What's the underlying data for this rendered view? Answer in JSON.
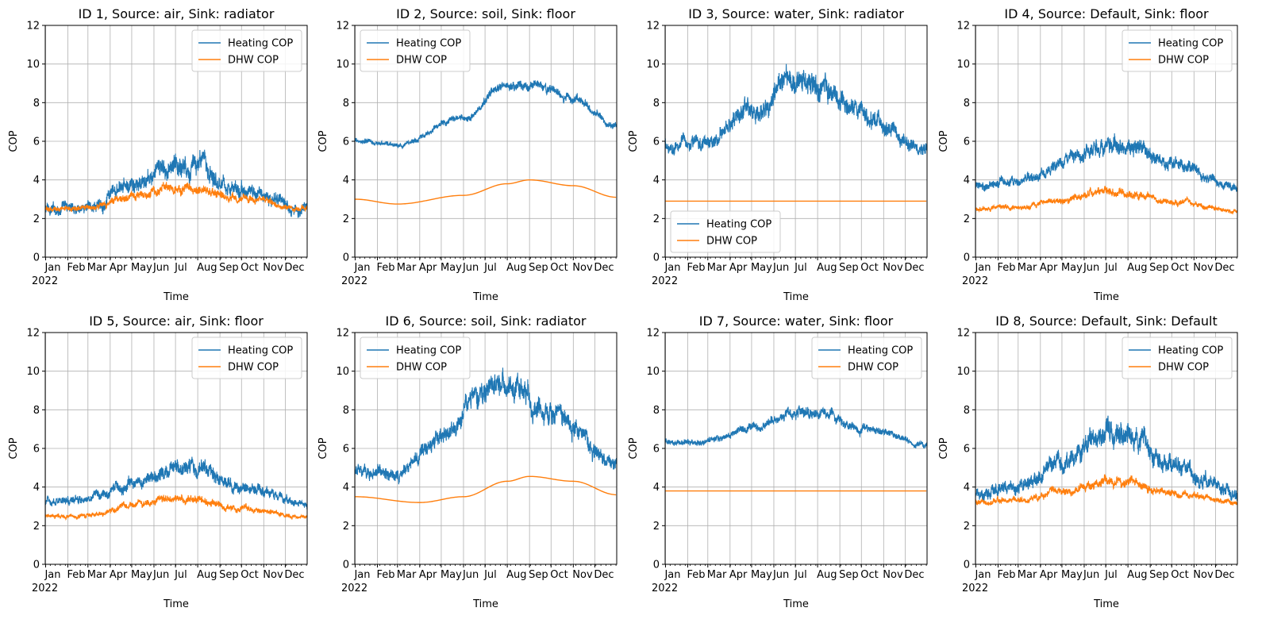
{
  "figure": {
    "colors": {
      "heating": "#1f77b4",
      "dhw": "#ff7f0e",
      "grid": "#b0b0b0",
      "axis": "#000000"
    },
    "series_style": {
      "heating": "noisy seasonal",
      "dhw": "smooth or flat"
    }
  },
  "chart_data": [
    {
      "type": "line",
      "title": "ID 1, Source: air, Sink: radiator",
      "xlabel": "Time",
      "ylabel": "COP",
      "ylim": [
        0,
        12
      ],
      "yticks": [
        0,
        2,
        4,
        6,
        8,
        10,
        12
      ],
      "xticklabels": [
        "Jan",
        "Feb",
        "Mar",
        "Apr",
        "May",
        "Jun",
        "Jul",
        "Aug",
        "Sep",
        "Oct",
        "Nov",
        "Dec"
      ],
      "year_label": "2022",
      "grid": true,
      "legend_position": "upper right",
      "series": [
        {
          "name": "Heating COP",
          "x": [
            "Jan",
            "Mar",
            "May",
            "Jul",
            "Aug",
            "Oct",
            "Dec"
          ],
          "y": [
            2.5,
            2.6,
            3.6,
            4.8,
            4.8,
            3.4,
            2.5
          ],
          "noise": 0.75
        },
        {
          "name": "DHW COP",
          "x": [
            "Jan",
            "Mar",
            "May",
            "Jul",
            "Aug",
            "Oct",
            "Dec"
          ],
          "y": [
            2.5,
            2.6,
            3.1,
            3.5,
            3.5,
            3.0,
            2.5
          ],
          "noise": 0.35
        }
      ]
    },
    {
      "type": "line",
      "title": "ID 2, Source: soil, Sink: floor",
      "xlabel": "Time",
      "ylabel": "COP",
      "ylim": [
        0,
        12
      ],
      "yticks": [
        0,
        2,
        4,
        6,
        8,
        10,
        12
      ],
      "xticklabels": [
        "Jan",
        "Feb",
        "Mar",
        "Apr",
        "May",
        "Jun",
        "Jul",
        "Aug",
        "Sep",
        "Oct",
        "Nov",
        "Dec"
      ],
      "year_label": "2022",
      "grid": true,
      "legend_position": "upper left",
      "series": [
        {
          "name": "Heating COP",
          "x": [
            "Jan",
            "Mar",
            "Jun",
            "Aug",
            "Sep",
            "Nov",
            "Dec"
          ],
          "y": [
            6.0,
            5.8,
            7.2,
            9.0,
            9.0,
            8.2,
            6.8
          ],
          "noise": 0.35
        },
        {
          "name": "DHW COP",
          "x": [
            "Jan",
            "Mar",
            "Jun",
            "Aug",
            "Sep",
            "Nov",
            "Dec"
          ],
          "y": [
            3.0,
            2.75,
            3.2,
            3.8,
            4.0,
            3.7,
            3.1
          ],
          "noise": 0
        }
      ]
    },
    {
      "type": "line",
      "title": "ID 3, Source: water, Sink: radiator",
      "xlabel": "Time",
      "ylabel": "COP",
      "ylim": [
        0,
        12
      ],
      "yticks": [
        0,
        2,
        4,
        6,
        8,
        10,
        12
      ],
      "xticklabels": [
        "Jan",
        "Feb",
        "Mar",
        "Apr",
        "May",
        "Jun",
        "Jul",
        "Aug",
        "Sep",
        "Oct",
        "Nov",
        "Dec"
      ],
      "year_label": "2022",
      "grid": true,
      "legend_position": "lower left",
      "series": [
        {
          "name": "Heating COP",
          "x": [
            "Jan",
            "Mar",
            "May",
            "Jul",
            "Aug",
            "Oct",
            "Dec"
          ],
          "y": [
            5.8,
            6.0,
            7.5,
            9.0,
            9.0,
            7.2,
            5.5
          ],
          "noise": 0.9
        },
        {
          "name": "DHW COP",
          "x": [
            "Jan",
            "Dec"
          ],
          "y": [
            2.9,
            2.9
          ],
          "noise": 0
        }
      ]
    },
    {
      "type": "line",
      "title": "ID 4, Source: Default, Sink: floor",
      "xlabel": "Time",
      "ylabel": "COP",
      "ylim": [
        0,
        12
      ],
      "yticks": [
        0,
        2,
        4,
        6,
        8,
        10,
        12
      ],
      "xticklabels": [
        "Jan",
        "Feb",
        "Mar",
        "Apr",
        "May",
        "Jun",
        "Jul",
        "Aug",
        "Sep",
        "Oct",
        "Nov",
        "Dec"
      ],
      "year_label": "2022",
      "grid": true,
      "legend_position": "upper right",
      "series": [
        {
          "name": "Heating COP",
          "x": [
            "Jan",
            "Mar",
            "May",
            "Jul",
            "Aug",
            "Oct",
            "Dec"
          ],
          "y": [
            3.7,
            3.9,
            4.8,
            5.8,
            5.8,
            4.8,
            3.6
          ],
          "noise": 0.6
        },
        {
          "name": "DHW COP",
          "x": [
            "Jan",
            "Mar",
            "May",
            "Jul",
            "Aug",
            "Oct",
            "Dec"
          ],
          "y": [
            2.5,
            2.6,
            3.0,
            3.4,
            3.3,
            2.9,
            2.4
          ],
          "noise": 0.3
        }
      ]
    },
    {
      "type": "line",
      "title": "ID 5, Source: air, Sink: floor",
      "xlabel": "Time",
      "ylabel": "COP",
      "ylim": [
        0,
        12
      ],
      "yticks": [
        0,
        2,
        4,
        6,
        8,
        10,
        12
      ],
      "xticklabels": [
        "Jan",
        "Feb",
        "Mar",
        "Apr",
        "May",
        "Jun",
        "Jul",
        "Aug",
        "Sep",
        "Oct",
        "Nov",
        "Dec"
      ],
      "year_label": "2022",
      "grid": true,
      "legend_position": "upper right",
      "series": [
        {
          "name": "Heating COP",
          "x": [
            "Jan",
            "Mar",
            "May",
            "Jul",
            "Aug",
            "Oct",
            "Dec"
          ],
          "y": [
            3.2,
            3.4,
            4.2,
            5.0,
            5.0,
            4.0,
            3.1
          ],
          "noise": 0.55
        },
        {
          "name": "DHW COP",
          "x": [
            "Jan",
            "Mar",
            "May",
            "Jul",
            "Aug",
            "Oct",
            "Dec"
          ],
          "y": [
            2.5,
            2.55,
            3.0,
            3.4,
            3.3,
            2.9,
            2.4
          ],
          "noise": 0.3
        }
      ]
    },
    {
      "type": "line",
      "title": "ID 6, Source: soil, Sink: radiator",
      "xlabel": "Time",
      "ylabel": "COP",
      "ylim": [
        0,
        12
      ],
      "yticks": [
        0,
        2,
        4,
        6,
        8,
        10,
        12
      ],
      "xticklabels": [
        "Jan",
        "Feb",
        "Mar",
        "Apr",
        "May",
        "Jun",
        "Jul",
        "Aug",
        "Sep",
        "Oct",
        "Nov",
        "Dec"
      ],
      "year_label": "2022",
      "grid": true,
      "legend_position": "upper left",
      "series": [
        {
          "name": "Heating COP",
          "x": [
            "Jan",
            "Mar",
            "May",
            "Jul",
            "Aug",
            "Oct",
            "Dec"
          ],
          "y": [
            4.8,
            4.6,
            6.5,
            9.0,
            9.2,
            7.8,
            5.2
          ],
          "noise": 0.9
        },
        {
          "name": "DHW COP",
          "x": [
            "Jan",
            "Apr",
            "Jun",
            "Aug",
            "Sep",
            "Nov",
            "Dec"
          ],
          "y": [
            3.5,
            3.2,
            3.5,
            4.3,
            4.55,
            4.3,
            3.6
          ],
          "noise": 0
        }
      ]
    },
    {
      "type": "line",
      "title": "ID 7, Source: water, Sink: floor",
      "xlabel": "Time",
      "ylabel": "COP",
      "ylim": [
        0,
        12
      ],
      "yticks": [
        0,
        2,
        4,
        6,
        8,
        10,
        12
      ],
      "xticklabels": [
        "Jan",
        "Feb",
        "Mar",
        "Apr",
        "May",
        "Jun",
        "Jul",
        "Aug",
        "Sep",
        "Oct",
        "Nov",
        "Dec"
      ],
      "year_label": "2022",
      "grid": true,
      "legend_position": "upper right",
      "series": [
        {
          "name": "Heating COP",
          "x": [
            "Jan",
            "Mar",
            "May",
            "Jul",
            "Aug",
            "Oct",
            "Dec"
          ],
          "y": [
            6.3,
            6.4,
            7.0,
            7.9,
            7.9,
            7.1,
            6.2
          ],
          "noise": 0.4
        },
        {
          "name": "DHW COP",
          "x": [
            "Jan",
            "Dec"
          ],
          "y": [
            3.8,
            3.8
          ],
          "noise": 0
        }
      ]
    },
    {
      "type": "line",
      "title": "ID 8, Source: Default, Sink: Default",
      "xlabel": "Time",
      "ylabel": "COP",
      "ylim": [
        0,
        12
      ],
      "yticks": [
        0,
        2,
        4,
        6,
        8,
        10,
        12
      ],
      "xticklabels": [
        "Jan",
        "Feb",
        "Mar",
        "Apr",
        "May",
        "Jun",
        "Jul",
        "Aug",
        "Sep",
        "Oct",
        "Nov",
        "Dec"
      ],
      "year_label": "2022",
      "grid": true,
      "legend_position": "upper right",
      "series": [
        {
          "name": "Heating COP",
          "x": [
            "Jan",
            "Mar",
            "May",
            "Jul",
            "Aug",
            "Oct",
            "Dec"
          ],
          "y": [
            3.6,
            4.0,
            5.2,
            6.8,
            6.8,
            5.0,
            3.6
          ],
          "noise": 0.85
        },
        {
          "name": "DHW COP",
          "x": [
            "Jan",
            "Mar",
            "May",
            "Jul",
            "Aug",
            "Oct",
            "Dec"
          ],
          "y": [
            3.2,
            3.3,
            3.8,
            4.3,
            4.2,
            3.7,
            3.2
          ],
          "noise": 0.35
        }
      ]
    }
  ]
}
